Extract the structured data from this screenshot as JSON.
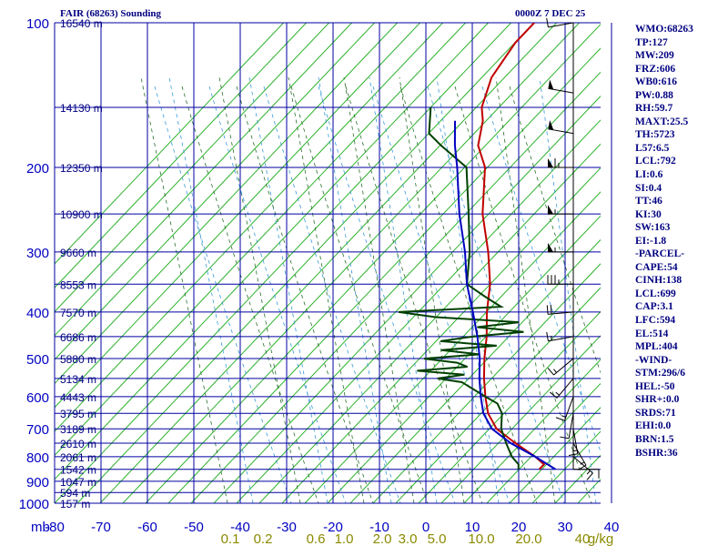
{
  "chart_data": {
    "type": "line",
    "title": "FAIR (68263) Sounding",
    "time": "0000Z  7 DEC 25",
    "pressure_axis_label": "mb",
    "temperature_ticks": [
      -80,
      -70,
      -60,
      -50,
      -40,
      -30,
      -20,
      -10,
      0,
      10,
      20,
      30,
      40
    ],
    "pressure_ticks": [
      100,
      200,
      300,
      400,
      500,
      600,
      700,
      800,
      900,
      1000
    ],
    "pressure_range": [
      100,
      1000
    ],
    "height_labels": [
      {
        "p": 100,
        "label": "16540 m"
      },
      {
        "p": 150,
        "label": "14130 m"
      },
      {
        "p": 200,
        "label": "12350 m"
      },
      {
        "p": 250,
        "label": "10900 m"
      },
      {
        "p": 300,
        "label": "9660 m"
      },
      {
        "p": 350,
        "label": "8553 m"
      },
      {
        "p": 400,
        "label": "7570 m"
      },
      {
        "p": 450,
        "label": "6686 m"
      },
      {
        "p": 500,
        "label": "5880 m"
      },
      {
        "p": 550,
        "label": "5134 m"
      },
      {
        "p": 600,
        "label": "4443 m"
      },
      {
        "p": 650,
        "label": "3795 m"
      },
      {
        "p": 700,
        "label": "3189 m"
      },
      {
        "p": 750,
        "label": "2610 m"
      },
      {
        "p": 800,
        "label": "2061 m"
      },
      {
        "p": 850,
        "label": "1542 m"
      },
      {
        "p": 900,
        "label": "1047 m"
      },
      {
        "p": 950,
        "label": "594 m"
      },
      {
        "p": 1000,
        "label": "157 m"
      }
    ],
    "mixing_ratio_labels": [
      "0.1",
      "0.2",
      "0.6",
      "1.0",
      "2.0",
      "3.0",
      "5.0",
      "10.0",
      "20.0",
      "40",
      "g/kg"
    ],
    "series": [
      {
        "name": "temperature",
        "color": "#c00000",
        "points": [
          [
            850,
            17.5
          ],
          [
            830,
            17.5
          ],
          [
            800,
            14
          ],
          [
            750,
            7
          ],
          [
            700,
            0
          ],
          [
            650,
            -5
          ],
          [
            600,
            -9
          ],
          [
            550,
            -13
          ],
          [
            500,
            -17
          ],
          [
            450,
            -21
          ],
          [
            400,
            -26
          ],
          [
            350,
            -31
          ],
          [
            300,
            -38
          ],
          [
            250,
            -47
          ],
          [
            200,
            -56
          ],
          [
            180,
            -62
          ],
          [
            160,
            -66
          ],
          [
            150,
            -69
          ],
          [
            130,
            -73
          ],
          [
            110,
            -75
          ],
          [
            100,
            -75
          ]
        ]
      },
      {
        "name": "dewpoint",
        "color": "#004000",
        "points": [
          [
            850,
            13
          ],
          [
            830,
            12
          ],
          [
            800,
            9
          ],
          [
            750,
            5
          ],
          [
            700,
            1
          ],
          [
            650,
            -2
          ],
          [
            620,
            -5
          ],
          [
            600,
            -9
          ],
          [
            560,
            -17
          ],
          [
            550,
            -23
          ],
          [
            540,
            -18
          ],
          [
            530,
            -29
          ],
          [
            520,
            -19
          ],
          [
            510,
            -22
          ],
          [
            500,
            -30
          ],
          [
            490,
            -19
          ],
          [
            480,
            -28
          ],
          [
            470,
            -17
          ],
          [
            460,
            -30
          ],
          [
            450,
            -24
          ],
          [
            440,
            -14
          ],
          [
            430,
            -25
          ],
          [
            420,
            -17
          ],
          [
            410,
            -36
          ],
          [
            400,
            -45
          ],
          [
            390,
            -24
          ],
          [
            380,
            -27
          ],
          [
            370,
            -30
          ],
          [
            350,
            -36
          ],
          [
            300,
            -42
          ],
          [
            250,
            -50
          ],
          [
            200,
            -60
          ],
          [
            180,
            -70
          ],
          [
            170,
            -75
          ],
          [
            150,
            -80
          ]
        ]
      },
      {
        "name": "parcel",
        "color": "#0000c0",
        "points": [
          [
            850,
            21
          ],
          [
            800,
            14
          ],
          [
            750,
            6
          ],
          [
            700,
            -1
          ],
          [
            650,
            -6
          ],
          [
            600,
            -10
          ],
          [
            550,
            -14
          ],
          [
            500,
            -18
          ],
          [
            450,
            -23
          ],
          [
            400,
            -29
          ],
          [
            350,
            -36
          ],
          [
            300,
            -43
          ],
          [
            250,
            -52
          ],
          [
            200,
            -62
          ],
          [
            180,
            -67
          ],
          [
            160,
            -72
          ]
        ]
      }
    ]
  },
  "header": {
    "title": "FAIR (68263) Sounding",
    "time": "0000Z  7 DEC 25"
  },
  "indices": [
    "WMO:68263",
    "TP:127",
    "MW:209",
    "FRZ:606",
    "WB0:616",
    "PW:0.88",
    "RH:59.7",
    "MAXT:25.5",
    "TH:5723",
    "L57:6.5",
    "LCL:792",
    "LI:0.6",
    "SI:0.4",
    "TT:46",
    "KI:30",
    "SW:163",
    "EI:-1.8",
    "-PARCEL-",
    "CAPE:54",
    "CINH:138",
    "LCL:699",
    "CAP:3.1",
    "LFC:594",
    "EL:514",
    "MPL:404",
    "-WIND-",
    "STM:296/6",
    "HEL:-50",
    "SHR+:0.0",
    "SRDS:71",
    "EHI:0.0",
    "BRN:1.5",
    "BSHR:36"
  ],
  "wind_barbs": [
    {
      "p": 100,
      "dir": 260,
      "kt": 10
    },
    {
      "p": 140,
      "dir": 280,
      "kt": 50
    },
    {
      "p": 170,
      "dir": 280,
      "kt": 50
    },
    {
      "p": 200,
      "dir": 270,
      "kt": 65
    },
    {
      "p": 250,
      "dir": 270,
      "kt": 55
    },
    {
      "p": 300,
      "dir": 270,
      "kt": 55
    },
    {
      "p": 350,
      "dir": 270,
      "kt": 35
    },
    {
      "p": 400,
      "dir": 265,
      "kt": 20
    },
    {
      "p": 450,
      "dir": 260,
      "kt": 15
    },
    {
      "p": 500,
      "dir": 230,
      "kt": 15
    },
    {
      "p": 550,
      "dir": 220,
      "kt": 15
    },
    {
      "p": 600,
      "dir": 200,
      "kt": 15
    },
    {
      "p": 650,
      "dir": 190,
      "kt": 10
    },
    {
      "p": 700,
      "dir": 170,
      "kt": 15
    },
    {
      "p": 750,
      "dir": 150,
      "kt": 15
    },
    {
      "p": 800,
      "dir": 130,
      "kt": 15
    },
    {
      "p": 850,
      "dir": 90,
      "kt": 10
    }
  ]
}
